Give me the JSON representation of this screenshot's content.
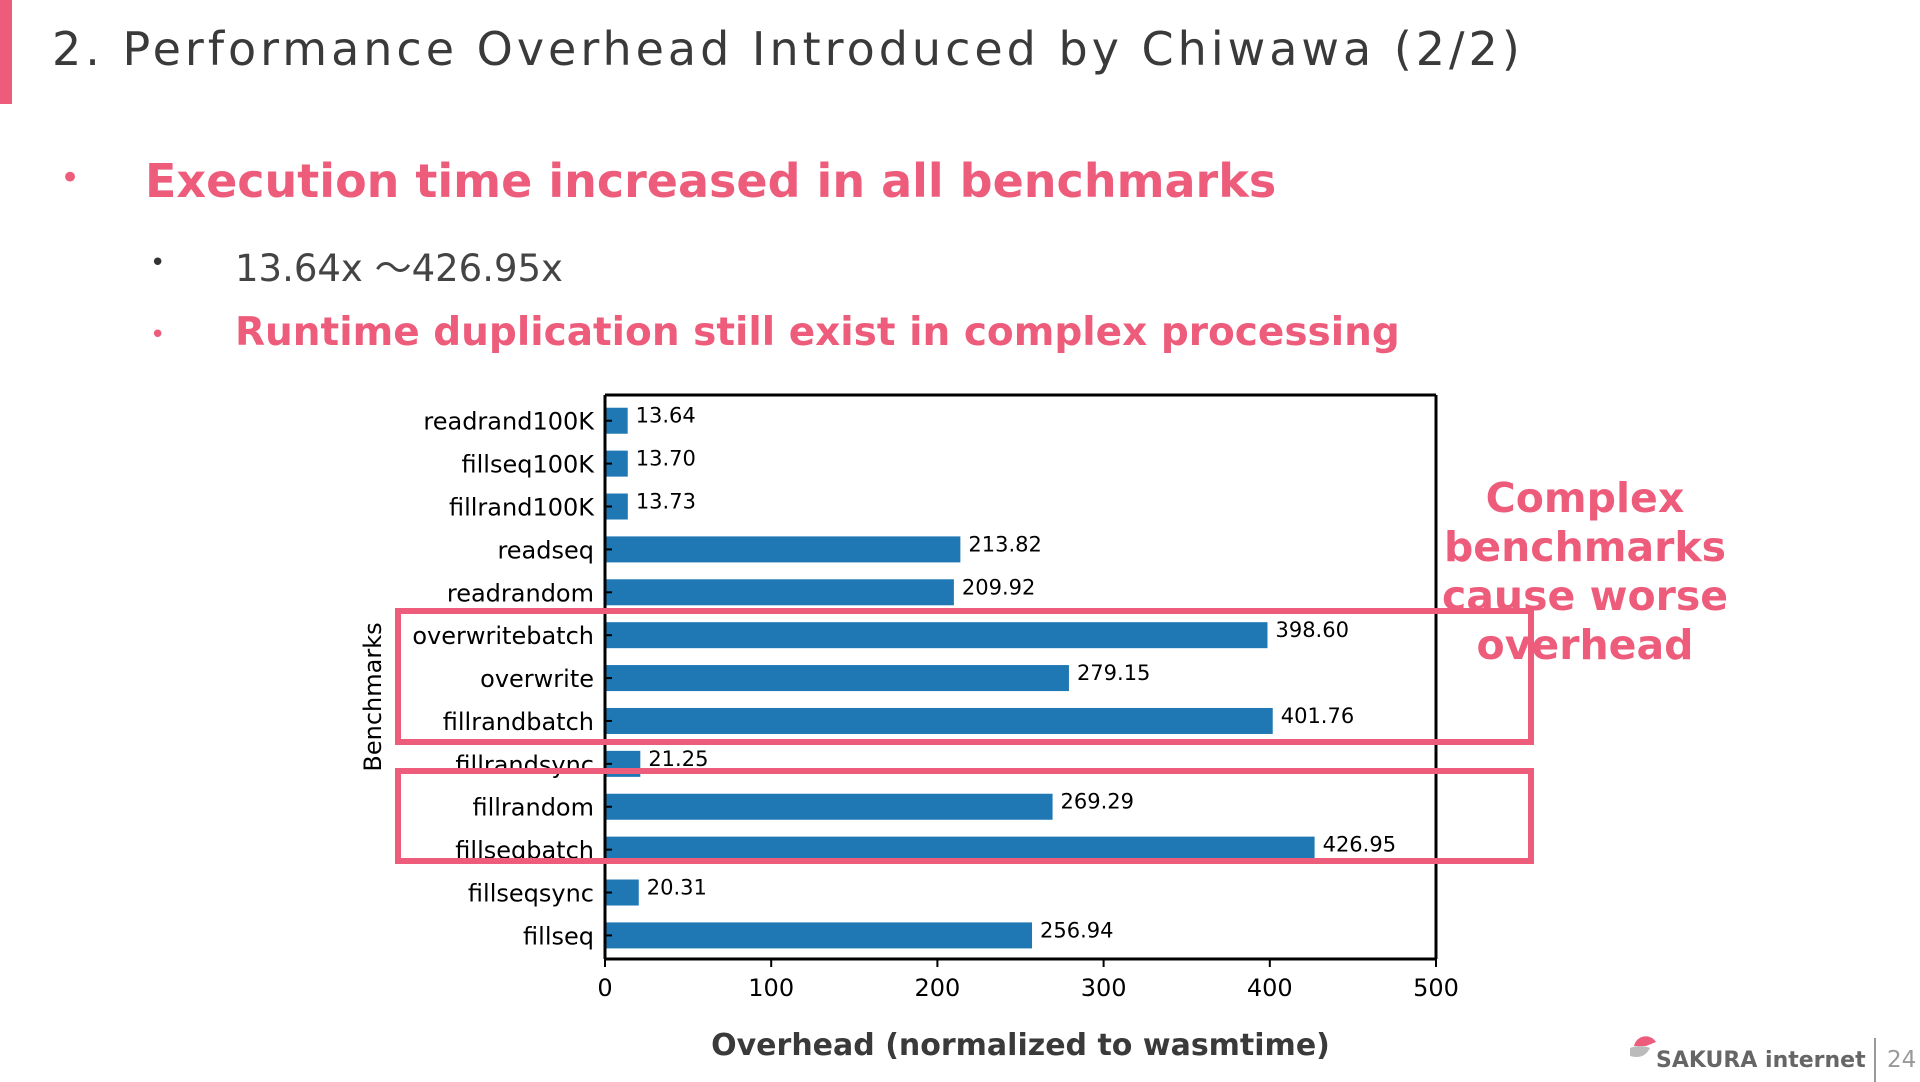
{
  "slide": {
    "title": "2. Performance Overhead Introduced by Chiwawa (2/2)",
    "page_number": "24",
    "brand": "SAKURA internet"
  },
  "bullets": [
    {
      "marker": "•",
      "text": "Execution time increased in all benchmarks"
    },
    {
      "marker": "•",
      "text": "13.64x ～426.95x"
    },
    {
      "marker": "•",
      "text": "Runtime duplication still exist in complex processing"
    }
  ],
  "callout": {
    "line1": "Complex benchmarks",
    "line2": "cause worse overhead"
  },
  "colors": {
    "accent": "#ee5c7b",
    "bar": "#1f77b4",
    "axis": "#000000"
  },
  "icons": [
    "sakura-logo-icon"
  ],
  "chart_data": {
    "type": "bar",
    "orientation": "horizontal",
    "categories": [
      "readrand100K",
      "fillseq100K",
      "fillrand100K",
      "readseq",
      "readrandom",
      "overwritebatch",
      "overwrite",
      "fillrandbatch",
      "fillrandsync",
      "fillrandom",
      "fillseqbatch",
      "fillseqsync",
      "fillseq"
    ],
    "values": [
      13.64,
      13.7,
      13.73,
      213.82,
      209.92,
      398.6,
      279.15,
      401.76,
      21.25,
      269.29,
      426.95,
      20.31,
      256.94
    ],
    "value_labels": [
      "13.64",
      "13.70",
      "13.73",
      "213.82",
      "209.92",
      "398.60",
      "279.15",
      "401.76",
      "21.25",
      "269.29",
      "426.95",
      "20.31",
      "256.94"
    ],
    "xlabel": "Overhead (normalized to wasmtime)",
    "ylabel": "Benchmarks",
    "xlim": [
      0,
      500
    ],
    "xticks": [
      0,
      100,
      200,
      300,
      400,
      500
    ],
    "grid": false,
    "highlight_groups": [
      [
        "overwritebatch",
        "overwrite",
        "fillrandbatch"
      ],
      [
        "fillrandom",
        "fillseqbatch"
      ]
    ]
  }
}
